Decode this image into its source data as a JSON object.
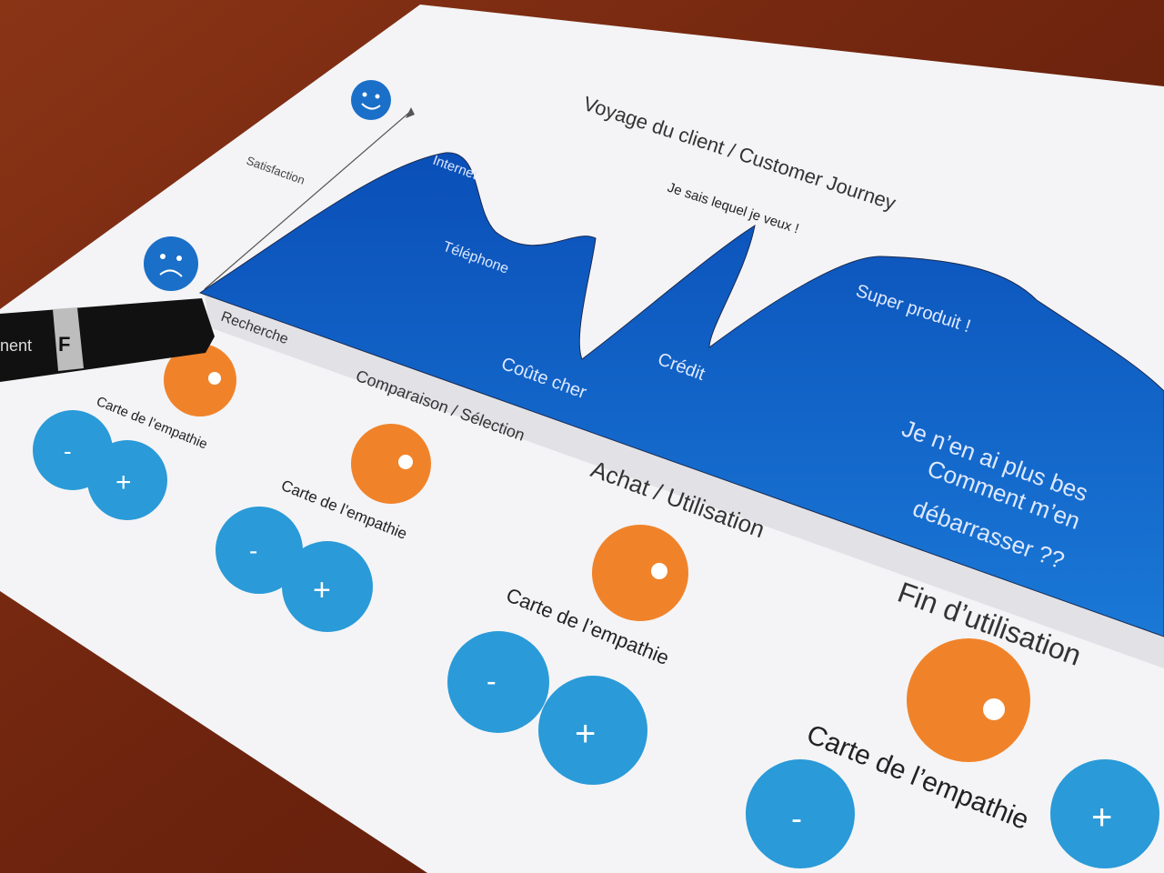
{
  "title": "Voyage du client / Customer Journey",
  "axis_label": "Satisfaction",
  "curve_labels": {
    "internet": "Internet",
    "telephone": "Téléphone",
    "coute_cher": "Coûte cher",
    "je_sais": "Je sais lequel je veux !",
    "credit": "Crédit",
    "super_produit": "Super produit !",
    "end_line1": "Je n’en ai plus bes",
    "end_line2": "Comment m’en",
    "end_line3": "débarrasser ??"
  },
  "stages": [
    "Recherche",
    "Comparaison / Sélection",
    "Achat / Utilisation",
    "Fin d’utilisation"
  ],
  "empathy_card_label": "Carte de l’empathie",
  "minus": "-",
  "plus": "+",
  "marker": {
    "cap_letter": "F",
    "text": "nent"
  },
  "colors": {
    "wood": "#7a2a12",
    "paper": "#f4f4f6",
    "chart_blue": "#0f5fc4",
    "sticker_blue": "#2a9ad8",
    "sticker_orange": "#f0832a"
  }
}
